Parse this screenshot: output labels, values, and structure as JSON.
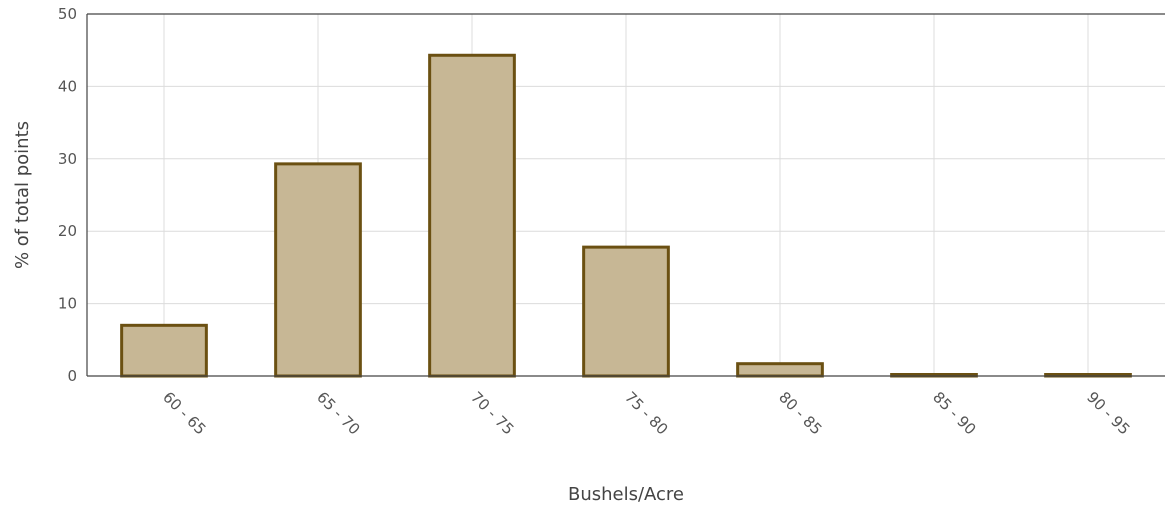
{
  "chart_data": {
    "type": "bar",
    "categories": [
      "60 - 65",
      "65 - 70",
      "70 - 75",
      "75 - 80",
      "80 - 85",
      "85 - 90",
      "90 - 95"
    ],
    "values": [
      7,
      29.3,
      44.3,
      17.8,
      1.7,
      0.2,
      0.15
    ],
    "title": "",
    "xlabel": "Bushels/Acre",
    "ylabel": "% of total points",
    "ylim": [
      0,
      50
    ],
    "yticks": [
      0,
      10,
      20,
      30,
      40,
      50
    ],
    "grid": true,
    "x_tick_rotation": "diagonal",
    "colors": {
      "bar_fill": "#c7b795",
      "bar_stroke": "#6b5012"
    }
  }
}
